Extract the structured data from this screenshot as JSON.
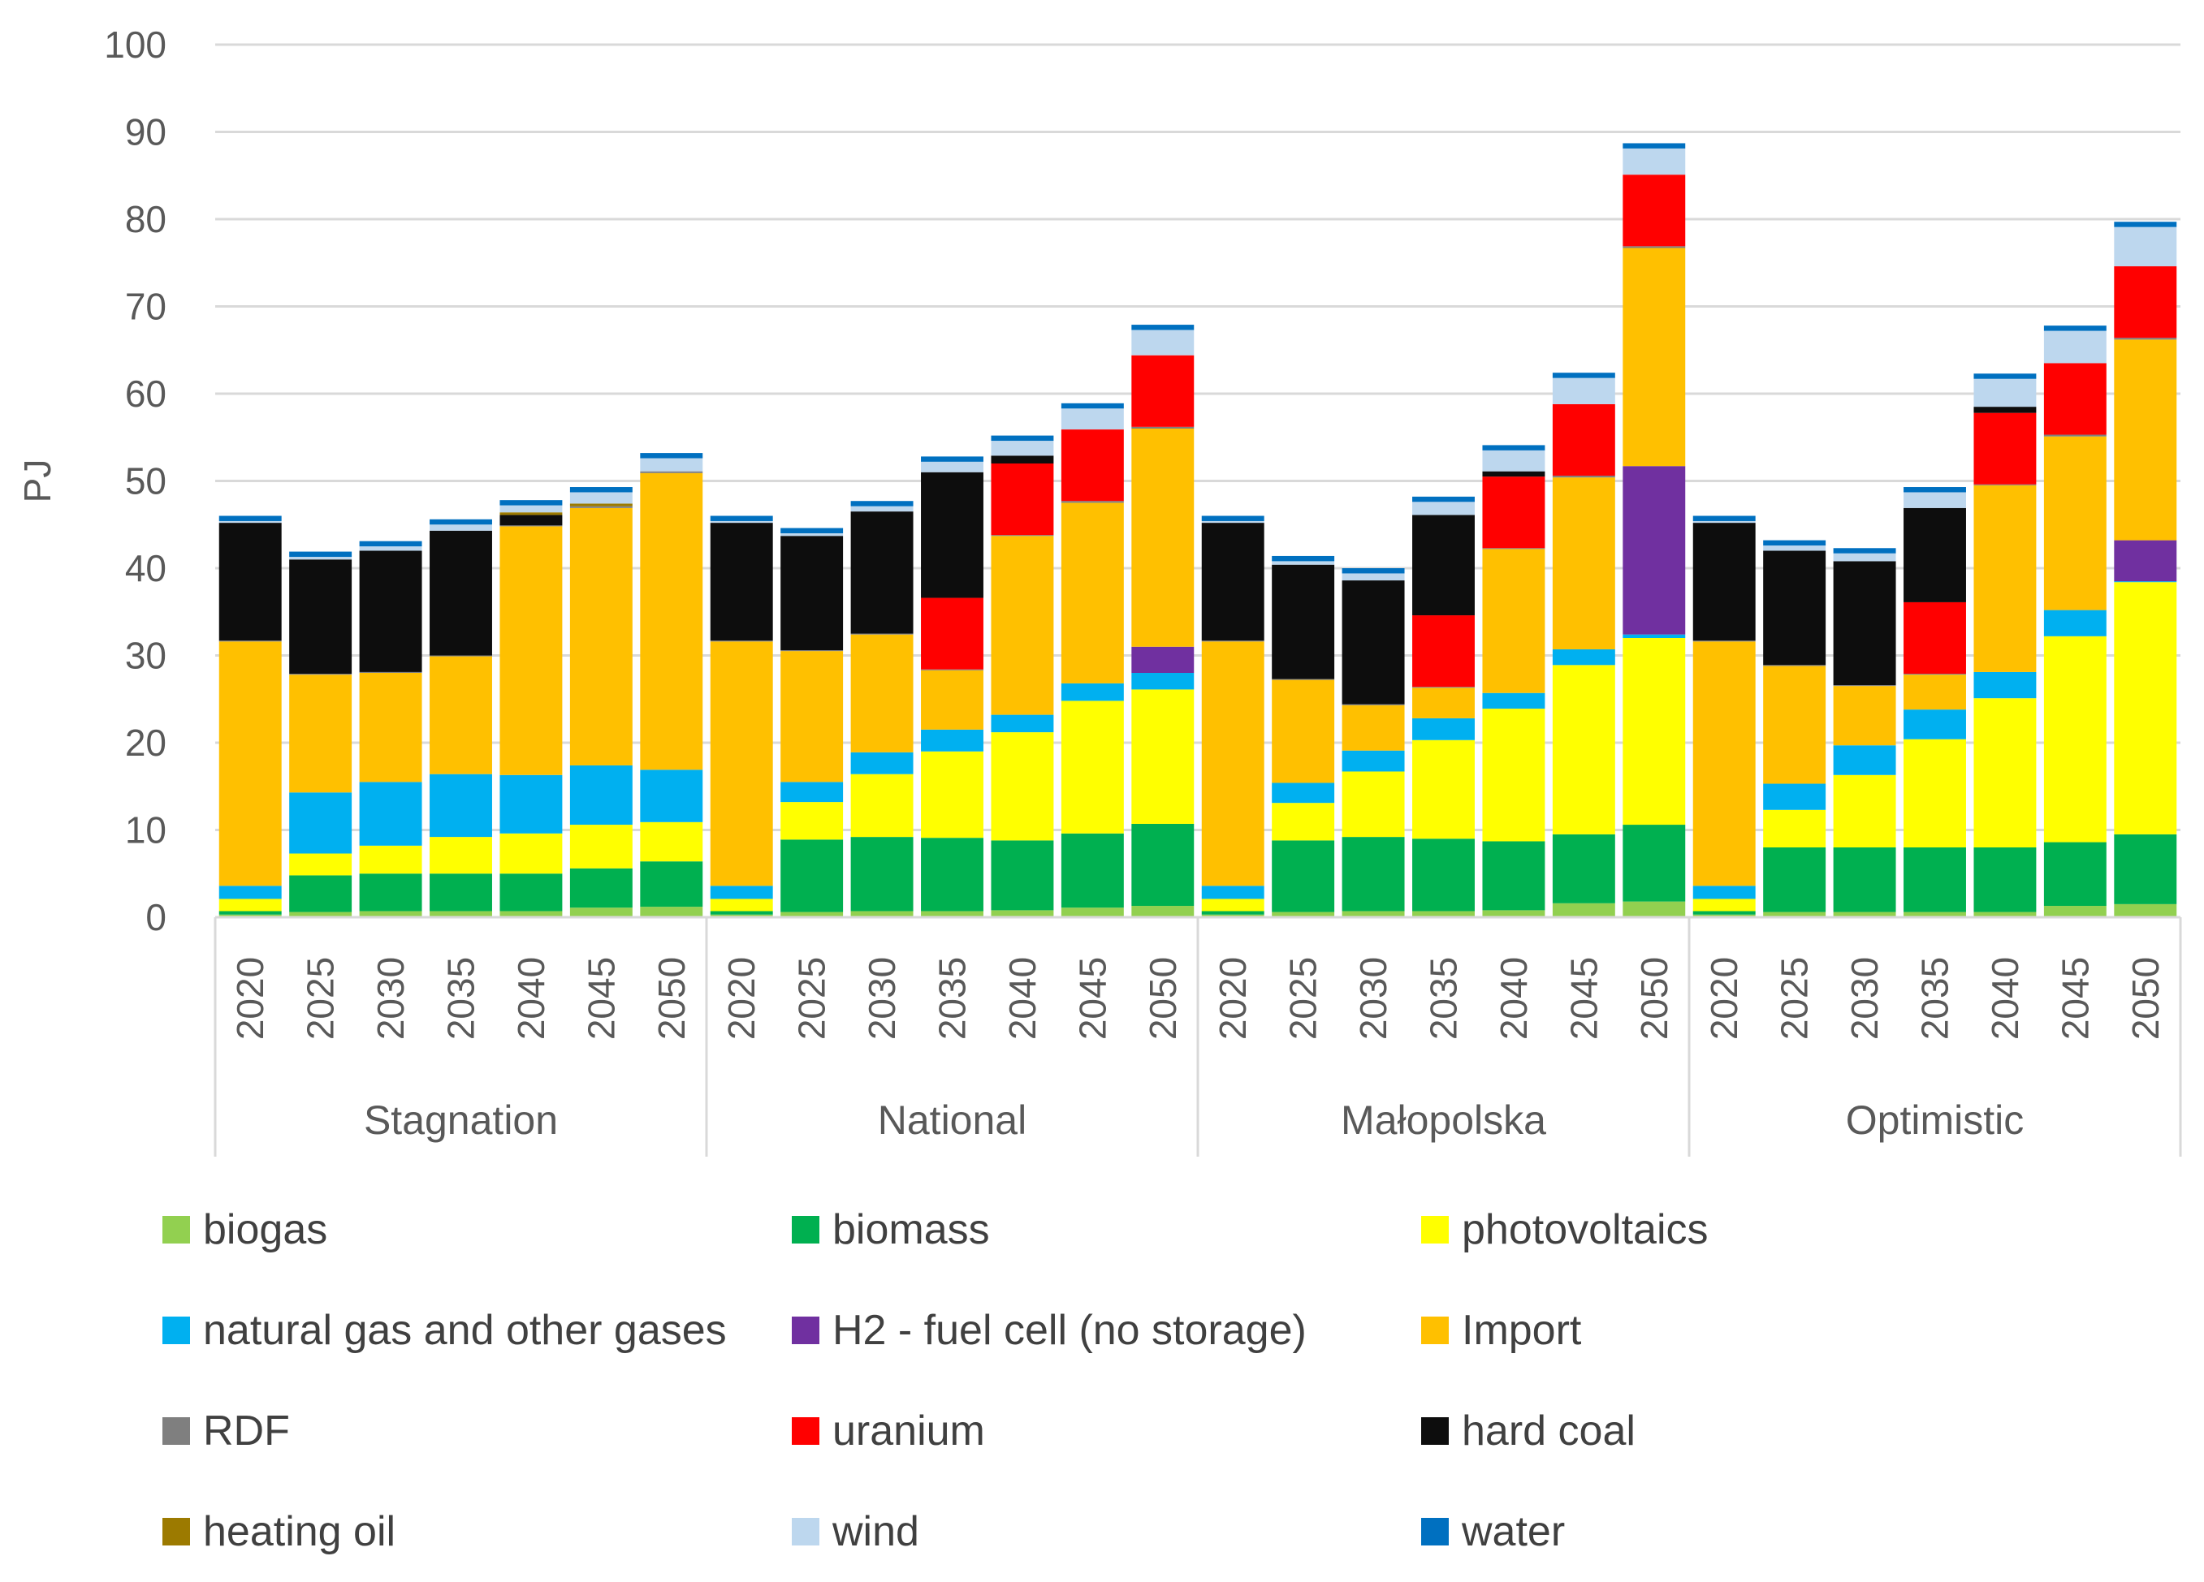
{
  "chart_data": {
    "type": "bar",
    "stacked": true,
    "ylabel": "PJ",
    "ylim": [
      0,
      100
    ],
    "yticks": [
      0,
      10,
      20,
      30,
      40,
      50,
      60,
      70,
      80,
      90,
      100
    ],
    "groups": [
      "Stagnation",
      "National",
      "Małopolska",
      "Optimistic"
    ],
    "years": [
      "2020",
      "2025",
      "2030",
      "2035",
      "2040",
      "2045",
      "2050"
    ],
    "series": [
      {
        "name": "biogas",
        "color": "#92D050",
        "values": [
          [
            0.3,
            0.6,
            0.7,
            0.7,
            0.7,
            1.1,
            1.2
          ],
          [
            0.3,
            0.6,
            0.7,
            0.7,
            0.8,
            1.1,
            1.3
          ],
          [
            0.3,
            0.6,
            0.7,
            0.7,
            0.8,
            1.6,
            1.8
          ],
          [
            0.3,
            0.6,
            0.6,
            0.6,
            0.6,
            1.3,
            1.5
          ]
        ]
      },
      {
        "name": "biomass",
        "color": "#00B050",
        "values": [
          [
            0.4,
            4.2,
            4.3,
            4.3,
            4.3,
            4.5,
            5.2
          ],
          [
            0.4,
            8.3,
            8.5,
            8.4,
            8.0,
            8.5,
            9.4
          ],
          [
            0.4,
            8.2,
            8.5,
            8.3,
            7.9,
            7.9,
            8.8
          ],
          [
            0.4,
            7.4,
            7.4,
            7.4,
            7.4,
            7.3,
            8.0
          ]
        ]
      },
      {
        "name": "photovoltaics",
        "color": "#FFFF00",
        "values": [
          [
            1.4,
            2.5,
            3.2,
            4.2,
            4.6,
            5.0,
            4.5
          ],
          [
            1.4,
            4.3,
            7.2,
            9.9,
            12.4,
            15.2,
            15.4
          ],
          [
            1.4,
            4.3,
            7.5,
            11.3,
            15.2,
            19.4,
            21.4
          ],
          [
            1.4,
            4.3,
            8.3,
            12.4,
            17.1,
            23.6,
            28.9
          ]
        ]
      },
      {
        "name": "natural gas and other gases",
        "color": "#00B0F0",
        "values": [
          [
            1.5,
            7.0,
            7.3,
            7.2,
            6.7,
            6.8,
            6.0
          ],
          [
            1.5,
            2.3,
            2.5,
            2.5,
            2.0,
            2.0,
            1.9
          ],
          [
            1.5,
            2.3,
            2.4,
            2.5,
            1.8,
            1.8,
            0.4
          ],
          [
            1.5,
            3.0,
            3.4,
            3.4,
            3.0,
            3.0,
            0.1
          ]
        ]
      },
      {
        "name": "H2 - fuel cell (no storage)",
        "color": "#7030A0",
        "values": [
          [
            0,
            0,
            0,
            0,
            0,
            0,
            0
          ],
          [
            0,
            0,
            0,
            0,
            0,
            0,
            3.0
          ],
          [
            0,
            0,
            0,
            0,
            0,
            0,
            19.3
          ],
          [
            0,
            0,
            0,
            0,
            0,
            0,
            4.7
          ]
        ]
      },
      {
        "name": "Import",
        "color": "#FFC000",
        "values": [
          [
            28.0,
            13.5,
            12.5,
            13.5,
            28.5,
            29.5,
            34.0
          ],
          [
            28.0,
            15.0,
            13.5,
            6.8,
            20.5,
            20.7,
            25.0
          ],
          [
            28.0,
            11.8,
            5.2,
            3.5,
            16.5,
            19.7,
            25.0
          ],
          [
            28.0,
            13.5,
            6.8,
            4.0,
            21.4,
            19.9,
            23.0
          ]
        ]
      },
      {
        "name": "RDF",
        "color": "#7F7F7F",
        "values": [
          [
            0.1,
            0.1,
            0.1,
            0.1,
            0.1,
            0.2,
            0.2
          ],
          [
            0.1,
            0.1,
            0.1,
            0.1,
            0.1,
            0.2,
            0.2
          ],
          [
            0.1,
            0.1,
            0.1,
            0.1,
            0.1,
            0.2,
            0.2
          ],
          [
            0.1,
            0.1,
            0.1,
            0.1,
            0.1,
            0.2,
            0.2
          ]
        ]
      },
      {
        "name": "uranium",
        "color": "#FF0000",
        "values": [
          [
            0,
            0,
            0,
            0,
            0,
            0,
            0
          ],
          [
            0,
            0,
            0,
            8.2,
            8.2,
            8.2,
            8.2
          ],
          [
            0,
            0,
            0,
            8.2,
            8.2,
            8.2,
            8.2
          ],
          [
            0,
            0,
            0,
            8.2,
            8.2,
            8.2,
            8.2
          ]
        ]
      },
      {
        "name": "hard coal",
        "color": "#0D0D0D",
        "values": [
          [
            13.5,
            13.1,
            13.9,
            14.3,
            1.2,
            0,
            0
          ],
          [
            13.5,
            13.1,
            14.0,
            14.4,
            0.9,
            0,
            0
          ],
          [
            13.5,
            13.1,
            14.2,
            11.5,
            0.6,
            0,
            0
          ],
          [
            13.5,
            13.1,
            14.2,
            10.8,
            0.7,
            0,
            0
          ]
        ]
      },
      {
        "name": "heating oil",
        "color": "#9C7A00",
        "values": [
          [
            0,
            0,
            0,
            0,
            0.3,
            0.3,
            0
          ],
          [
            0,
            0,
            0,
            0,
            0,
            0,
            0
          ],
          [
            0,
            0,
            0,
            0,
            0,
            0,
            0
          ],
          [
            0,
            0,
            0,
            0,
            0,
            0,
            0
          ]
        ]
      },
      {
        "name": "wind",
        "color": "#BDD7EE",
        "values": [
          [
            0.2,
            0.3,
            0.5,
            0.7,
            0.8,
            1.3,
            1.5
          ],
          [
            0.2,
            0.3,
            0.6,
            1.2,
            1.7,
            2.4,
            2.9
          ],
          [
            0.2,
            0.4,
            0.8,
            1.5,
            2.4,
            3.0,
            3.0
          ],
          [
            0.2,
            0.6,
            0.9,
            1.8,
            3.2,
            3.7,
            4.5
          ]
        ]
      },
      {
        "name": "water",
        "color": "#0070C0",
        "values": [
          [
            0.6,
            0.6,
            0.6,
            0.6,
            0.6,
            0.6,
            0.6
          ],
          [
            0.6,
            0.6,
            0.6,
            0.6,
            0.6,
            0.6,
            0.6
          ],
          [
            0.6,
            0.6,
            0.6,
            0.6,
            0.6,
            0.6,
            0.6
          ],
          [
            0.6,
            0.6,
            0.6,
            0.6,
            0.6,
            0.6,
            0.6
          ]
        ]
      }
    ],
    "legend_position": "bottom"
  }
}
